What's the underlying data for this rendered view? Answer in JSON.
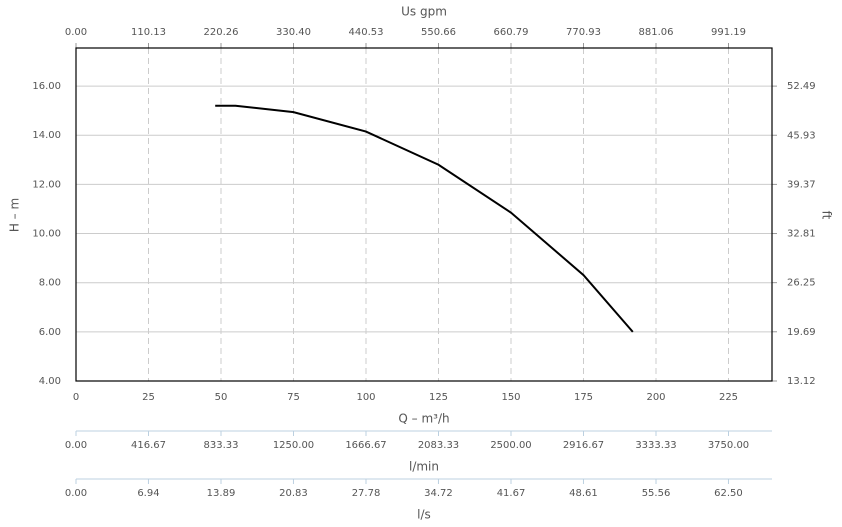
{
  "chart_data": {
    "type": "line",
    "x": [
      48,
      55,
      75,
      100,
      125,
      150,
      175,
      192
    ],
    "series": [
      {
        "name": "H",
        "color": "#000000",
        "values": [
          15.2,
          15.2,
          14.94,
          14.15,
          12.8,
          10.85,
          8.31,
          6.0
        ]
      }
    ],
    "xlabel": "Q – m³/h",
    "xlim": [
      0,
      240
    ],
    "xticks": [
      0,
      25,
      50,
      75,
      100,
      125,
      150,
      175,
      200,
      225
    ],
    "ylabel": "H – m",
    "ylim": [
      4,
      17.55
    ],
    "yticks": [
      {
        "value": 4,
        "label": "4.00"
      },
      {
        "value": 6,
        "label": "6.00"
      },
      {
        "value": 8,
        "label": "8.00"
      },
      {
        "value": 10,
        "label": "10.00"
      },
      {
        "value": 12,
        "label": "12.00"
      },
      {
        "value": 14,
        "label": "14.00"
      },
      {
        "value": 16,
        "label": "16.00"
      }
    ],
    "y2label": "ft",
    "y2lim": [
      13.12,
      57.58
    ],
    "y2ticks": [
      13.12,
      19.69,
      26.25,
      32.81,
      39.37,
      45.93,
      52.49
    ],
    "grid": true,
    "top_axis": {
      "label": "Us gpm",
      "lim": [
        0,
        1057.25
      ],
      "ticks": [
        {
          "value": 0,
          "label": "0.00"
        },
        110.13,
        220.26,
        {
          "value": 330.4,
          "label": "330.40"
        },
        440.53,
        550.66,
        660.79,
        770.93,
        881.06,
        991.19
      ]
    },
    "lower_axes": [
      {
        "label": "l/min",
        "lim": [
          0,
          4000
        ],
        "ticks": [
          {
            "value": 0,
            "label": "0.00"
          },
          416.67,
          833.33,
          {
            "value": 1250,
            "label": "1250.00"
          },
          1666.67,
          2083.33,
          {
            "value": 2500,
            "label": "2500.00"
          },
          2916.67,
          3333.33,
          {
            "value": 3750,
            "label": "3750.00"
          }
        ]
      },
      {
        "label": "l/s",
        "lim": [
          0,
          66.67
        ],
        "ticks": [
          {
            "value": 0,
            "label": "0.00"
          },
          6.94,
          13.89,
          20.83,
          27.78,
          34.72,
          41.67,
          48.61,
          55.56,
          {
            "value": 62.5,
            "label": "62.50"
          }
        ]
      }
    ]
  }
}
